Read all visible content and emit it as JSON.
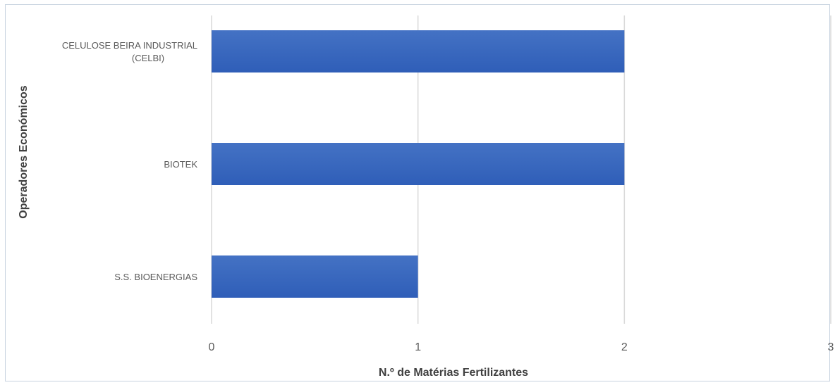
{
  "chart_data": {
    "type": "bar",
    "orientation": "horizontal",
    "categories": [
      [
        "CELULOSE BEIRA INDUSTRIAL",
        "(CELBI)"
      ],
      [
        "BIOTEK"
      ],
      [
        "S.S. BIOENERGIAS"
      ]
    ],
    "values": [
      2,
      2,
      1
    ],
    "xlabel": "N.º de Matérias Fertilizantes",
    "ylabel": "Operadores Económicos",
    "xlim": [
      0,
      3
    ],
    "xticks": [
      "0",
      "1",
      "2",
      "3"
    ],
    "grid": "vertical",
    "bar_color": "#4472c4",
    "bar_color_dark": "#2f5eb8"
  }
}
